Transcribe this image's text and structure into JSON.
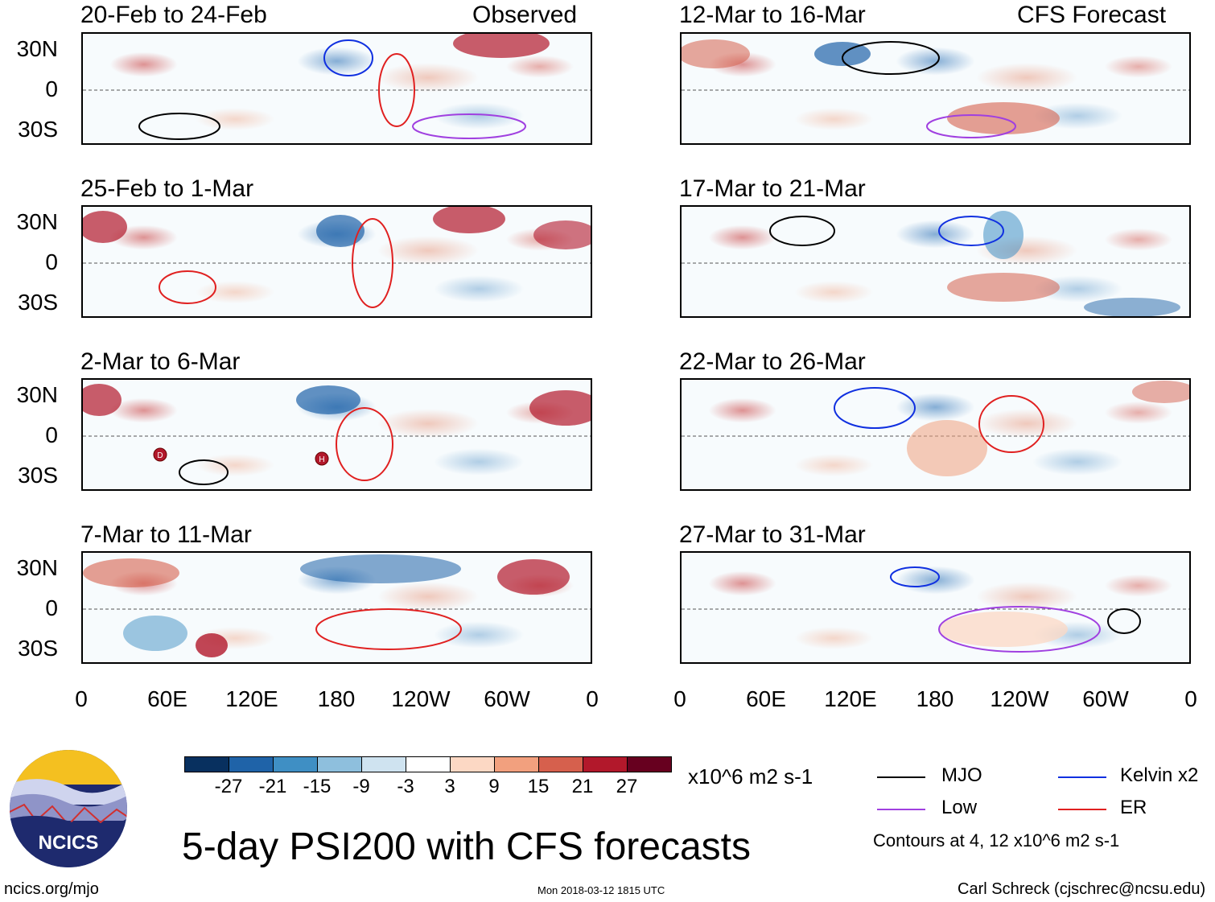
{
  "panels": {
    "left": [
      {
        "period": "20-Feb to 24-Feb",
        "label": "Observed"
      },
      {
        "period": "25-Feb to 1-Mar",
        "label": ""
      },
      {
        "period": "2-Mar to 6-Mar",
        "label": ""
      },
      {
        "period": "7-Mar to 11-Mar",
        "label": ""
      }
    ],
    "right": [
      {
        "period": "12-Mar to 16-Mar",
        "label": "CFS Forecast"
      },
      {
        "period": "17-Mar to 21-Mar",
        "label": ""
      },
      {
        "period": "22-Mar to 26-Mar",
        "label": ""
      },
      {
        "period": "27-Mar to 31-Mar",
        "label": ""
      }
    ]
  },
  "lat_labels": [
    "30N",
    "0",
    "30S"
  ],
  "lon_labels": [
    "0",
    "60E",
    "120E",
    "180",
    "120W",
    "60W",
    "0"
  ],
  "storm_markers": [
    "D",
    "H"
  ],
  "colorbar": {
    "ticks": [
      "-27",
      "-21",
      "-15",
      "-9",
      "-3",
      "3",
      "9",
      "15",
      "21",
      "27"
    ],
    "colors": [
      "#08305f",
      "#1f63a8",
      "#3f8fc4",
      "#8ebfdd",
      "#cfe3f0",
      "#ffffff",
      "#fcd8c4",
      "#f2a07e",
      "#d6604d",
      "#b2182b",
      "#67001f"
    ],
    "units": "x10^6 m2 s-1"
  },
  "legend": {
    "items": [
      {
        "name": "MJO",
        "color": "#000000"
      },
      {
        "name": "Kelvin x2",
        "color": "#1030e0"
      },
      {
        "name": "Low",
        "color": "#a040e0"
      },
      {
        "name": "ER",
        "color": "#e02020"
      }
    ],
    "note": "Contours at 4, 12 x10^6 m2 s-1"
  },
  "logo_text": "NCICS",
  "main_title": "5-day PSI200 with CFS forecasts",
  "footer": {
    "url": "ncics.org/mjo",
    "timestamp": "Mon 2018-03-12 1815 UTC",
    "author": "Carl Schreck (cjschrec@ncsu.edu)"
  }
}
